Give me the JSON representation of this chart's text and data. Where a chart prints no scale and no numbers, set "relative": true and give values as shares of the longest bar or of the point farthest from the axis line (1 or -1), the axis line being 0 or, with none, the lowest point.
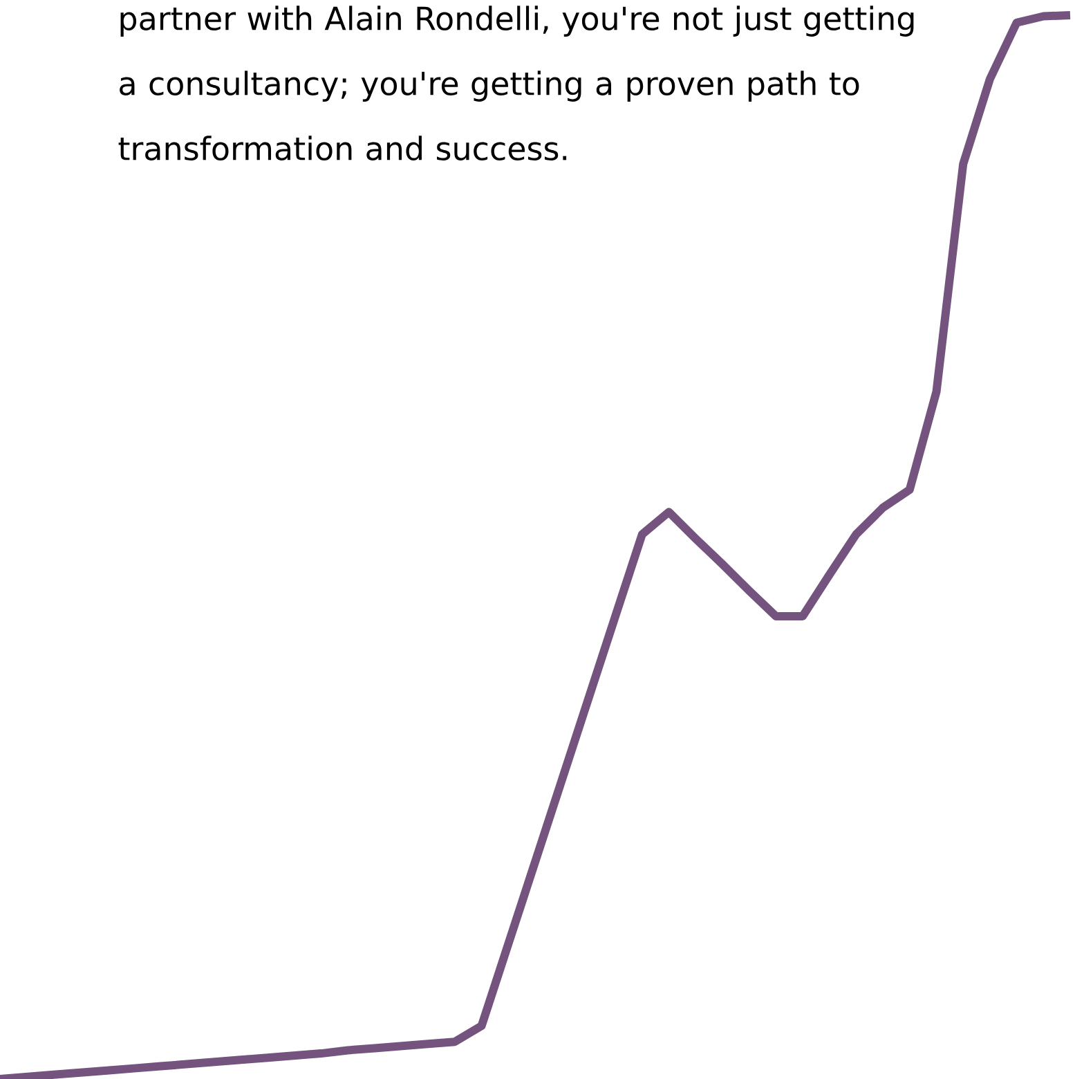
{
  "chart_data": {
    "type": "line",
    "relative": true,
    "categories": [
      null,
      null,
      null,
      null,
      null,
      null,
      null,
      null,
      null,
      null,
      null,
      null,
      null,
      null,
      null,
      null,
      null,
      null,
      null,
      null,
      null,
      null,
      null,
      null,
      null,
      null,
      null,
      null,
      null,
      null,
      null,
      null,
      null,
      null,
      null,
      null,
      null,
      null,
      null,
      null,
      null
    ],
    "series": [
      {
        "color": "#74537f",
        "values": [
          0,
          0.002,
          0.004,
          0.006,
          0.008,
          0.01,
          0.012,
          0.014,
          0.016,
          0.018,
          0.02,
          0.022,
          0.024,
          0.027,
          0.029,
          0.031,
          0.033,
          0.035,
          0.05,
          0.127,
          0.204,
          0.281,
          0.358,
          0.435,
          0.512,
          0.533,
          0.508,
          0.484,
          0.459,
          0.435,
          0.435,
          0.474,
          0.512,
          0.537,
          0.554,
          0.646,
          0.86,
          0.94,
          0.993,
          0.999,
          1
        ]
      }
    ],
    "annotations": [
      "partner with Alain Rondelli, you're not just getting a consultancy; you're getting a proven path to transformation and success."
    ]
  }
}
